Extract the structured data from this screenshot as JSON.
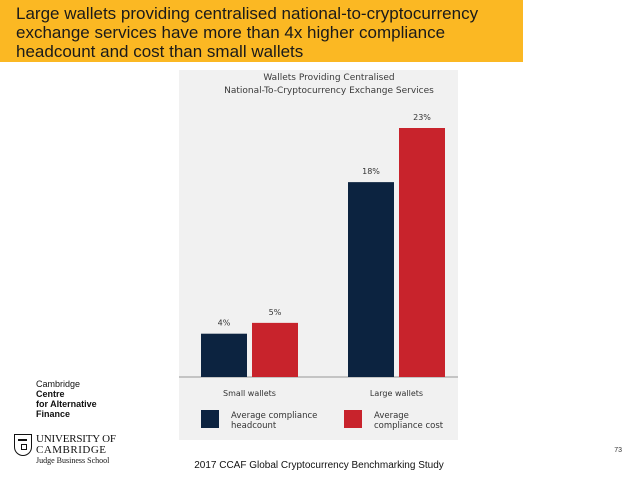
{
  "headline": "Large wallets providing centralised national-to-cryptocurrency exchange services have more than 4x higher compliance headcount and cost than small wallets",
  "chart_data": {
    "type": "bar",
    "title": [
      "Wallets Providing Centralised",
      "National-To-Cryptocurrency Exchange Services"
    ],
    "categories": [
      "Small wallets",
      "Large wallets"
    ],
    "series": [
      {
        "name": "Average compliance headcount",
        "legend_lines": [
          "Average compliance",
          "headcount"
        ],
        "values": [
          4,
          18
        ],
        "labels": [
          "4%",
          "18%"
        ],
        "color": "#0c2340"
      },
      {
        "name": "Average compliance cost",
        "legend_lines": [
          "Average",
          "compliance cost"
        ],
        "values": [
          5,
          23
        ],
        "labels": [
          "5%",
          "23%"
        ],
        "color": "#c8232c"
      }
    ],
    "ylim": [
      0,
      23
    ],
    "grid": false,
    "legend_position": "bottom"
  },
  "logos": {
    "ccaf": {
      "line1": "Cambridge",
      "line2": "Centre",
      "line3": "for Alternative",
      "line4": "Finance"
    },
    "cambridge": {
      "line1": "UNIVERSITY OF",
      "line2": "CAMBRIDGE",
      "line3": "Judge Business School"
    }
  },
  "footer": "2017 CCAF Global Cryptocurrency Benchmarking Study",
  "page_number": "73"
}
